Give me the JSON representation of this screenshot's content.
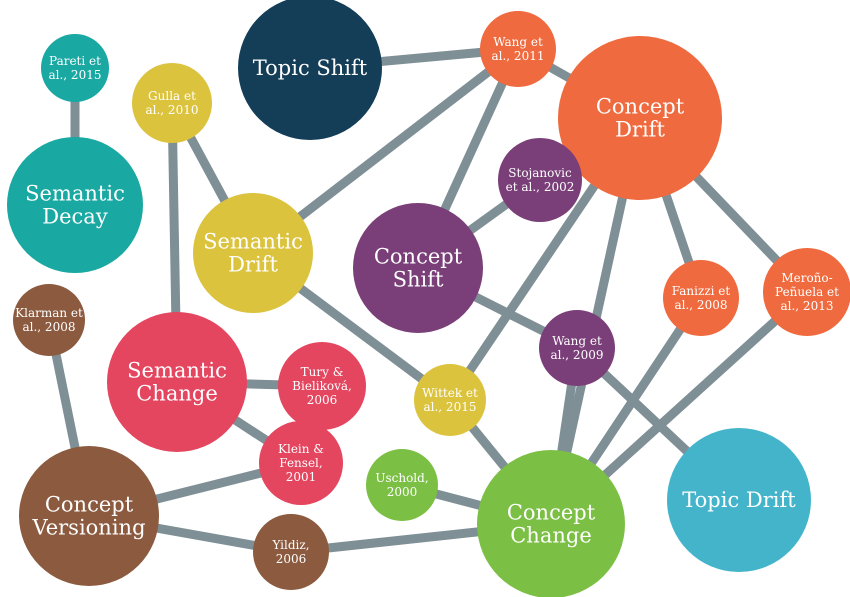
{
  "colors": {
    "edge": "#7f8f96",
    "teal": "#19a8a2",
    "navy": "#143d57",
    "mustard": "#dcc33d",
    "orange": "#ef6a3e",
    "purple": "#7a3f78",
    "crimson": "#e4455f",
    "brown": "#8b5a3f",
    "green": "#7cbf45",
    "sky": "#44b4cb"
  },
  "nodes": [
    {
      "id": "pareti",
      "lines": [
        "Pareti et",
        "al., 2015"
      ],
      "color": "teal",
      "kind": "small"
    },
    {
      "id": "semantic-decay",
      "lines": [
        "Semantic",
        "Decay"
      ],
      "color": "teal",
      "kind": "big"
    },
    {
      "id": "topic-shift",
      "lines": [
        "Topic Shift"
      ],
      "color": "navy",
      "kind": "big"
    },
    {
      "id": "gulla",
      "lines": [
        "Gulla et",
        "al., 2010"
      ],
      "color": "mustard",
      "kind": "small"
    },
    {
      "id": "semantic-drift",
      "lines": [
        "Semantic",
        "Drift"
      ],
      "color": "mustard",
      "kind": "big"
    },
    {
      "id": "wang-2011",
      "lines": [
        "Wang et",
        "al., 2011"
      ],
      "color": "orange",
      "kind": "small"
    },
    {
      "id": "concept-drift",
      "lines": [
        "Concept",
        "Drift"
      ],
      "color": "orange",
      "kind": "big"
    },
    {
      "id": "stojanovic",
      "lines": [
        "Stojanovic",
        "et al., 2002"
      ],
      "color": "purple",
      "kind": "small"
    },
    {
      "id": "concept-shift",
      "lines": [
        "Concept",
        "Shift"
      ],
      "color": "purple",
      "kind": "big"
    },
    {
      "id": "fanizzi",
      "lines": [
        "Fanizzi et",
        "al., 2008"
      ],
      "color": "orange",
      "kind": "small"
    },
    {
      "id": "merono",
      "lines": [
        "Meroño-",
        "Peñuela et",
        "al., 2013"
      ],
      "color": "orange",
      "kind": "small"
    },
    {
      "id": "klarman",
      "lines": [
        "Klarman et",
        "al., 2008"
      ],
      "color": "brown",
      "kind": "small"
    },
    {
      "id": "semantic-change",
      "lines": [
        "Semantic",
        "Change"
      ],
      "color": "crimson",
      "kind": "big"
    },
    {
      "id": "tury",
      "lines": [
        "Tury &",
        "Bieliková,",
        "2006"
      ],
      "color": "crimson",
      "kind": "small"
    },
    {
      "id": "wang-2009",
      "lines": [
        "Wang et",
        "al., 2009"
      ],
      "color": "purple",
      "kind": "small"
    },
    {
      "id": "wittek",
      "lines": [
        "Wittek et",
        "al., 2015"
      ],
      "color": "mustard",
      "kind": "small"
    },
    {
      "id": "klein",
      "lines": [
        "Klein &",
        "Fensel,",
        "2001"
      ],
      "color": "crimson",
      "kind": "small"
    },
    {
      "id": "uschold",
      "lines": [
        "Uschold,",
        "2000"
      ],
      "color": "green",
      "kind": "small"
    },
    {
      "id": "concept-versioning",
      "lines": [
        "Concept",
        "Versioning"
      ],
      "color": "brown",
      "kind": "big"
    },
    {
      "id": "concept-change",
      "lines": [
        "Concept",
        "Change"
      ],
      "color": "green",
      "kind": "big"
    },
    {
      "id": "yildiz",
      "lines": [
        "Yildiz,",
        "2006"
      ],
      "color": "brown",
      "kind": "small"
    },
    {
      "id": "topic-drift",
      "lines": [
        "Topic Drift"
      ],
      "color": "sky",
      "kind": "big"
    }
  ],
  "edges": [
    [
      "pareti",
      "semantic-decay"
    ],
    [
      "topic-shift",
      "wang-2011"
    ],
    [
      "wang-2011",
      "concept-drift"
    ],
    [
      "wang-2011",
      "semantic-drift"
    ],
    [
      "wang-2011",
      "concept-shift"
    ],
    [
      "gulla",
      "semantic-drift"
    ],
    [
      "gulla",
      "semantic-change"
    ],
    [
      "semantic-drift",
      "wittek"
    ],
    [
      "stojanovic",
      "concept-shift"
    ],
    [
      "concept-shift",
      "wang-2009"
    ],
    [
      "wang-2009",
      "topic-drift"
    ],
    [
      "wang-2009",
      "concept-change"
    ],
    [
      "concept-drift",
      "fanizzi"
    ],
    [
      "concept-drift",
      "merono"
    ],
    [
      "concept-drift",
      "wittek"
    ],
    [
      "concept-drift",
      "concept-change"
    ],
    [
      "fanizzi",
      "concept-change"
    ],
    [
      "merono",
      "concept-change"
    ],
    [
      "wittek",
      "concept-change"
    ],
    [
      "semantic-change",
      "tury"
    ],
    [
      "semantic-change",
      "klein"
    ],
    [
      "klein",
      "concept-versioning"
    ],
    [
      "klarman",
      "concept-versioning"
    ],
    [
      "concept-versioning",
      "yildiz"
    ],
    [
      "yildiz",
      "concept-change"
    ],
    [
      "uschold",
      "concept-change"
    ]
  ]
}
